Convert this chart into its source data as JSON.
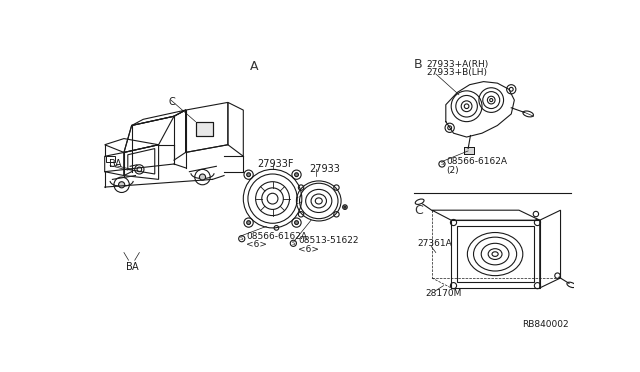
{
  "bg_color": "#ffffff",
  "line_color": "#1a1a1a",
  "section_A_label": "A",
  "section_B_label": "B",
  "section_C_label": "C",
  "parts": {
    "27933F": "27933F",
    "27933": "27933",
    "screw1_label": "08566-6162A",
    "screw1_qty": "<6>",
    "screw2_label": "08513-51622",
    "screw2_qty": "<6>",
    "27933_AB_line1": "27933+A(RH)",
    "27933_AB_line2": "27933+B(LH)",
    "screw3_label": "08566-6162A",
    "screw3_qty": "(2)",
    "27361A": "27361A",
    "28170M": "28170M",
    "RB840002": "RB840002"
  }
}
